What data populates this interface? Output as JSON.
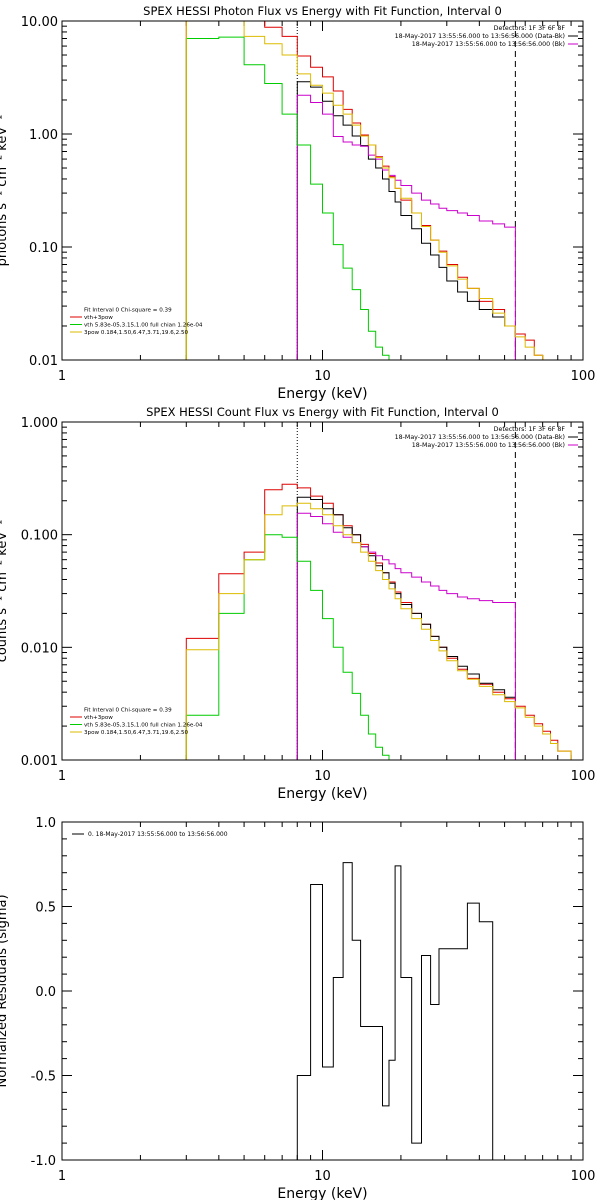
{
  "chart_data": [
    {
      "type": "line",
      "title": "SPEX HESSI Photon Flux vs Energy with Fit Function, Interval 0",
      "xlabel": "Energy (keV)",
      "ylabel": "photons s⁻¹ cm⁻² keV⁻¹",
      "x_scale": "log",
      "y_scale": "log",
      "xlim": [
        1,
        100
      ],
      "ylim": [
        0.01,
        10
      ],
      "x_ticks": [
        "1",
        "10",
        "100"
      ],
      "y_ticks": [
        "10.00",
        "1.00",
        "0.10",
        "0.01"
      ],
      "legend_top_right": [
        {
          "text": "Detectors: 1F 3F 6F 8F",
          "color": "#000000"
        },
        {
          "text": "18-May-2017 13:55:56.000 to 13:56:56.000 (Data-Bk)",
          "color": "#000000"
        },
        {
          "text": "18-May-2017 13:55:56.000 to 13:56:56.000 (Bk)",
          "color": "#cc00cc"
        }
      ],
      "legend_bottom_left": [
        {
          "text": "Fit Interval 0   Chi-square = 0.39",
          "color": "#000000"
        },
        {
          "text": "vth+3pow",
          "color": "#dd0000"
        },
        {
          "text": "vth 5.83e-05,3.15,1.00  full chian 1.26e-04",
          "color": "#00cc00"
        },
        {
          "text": "3pow 0.184,1.50,6.47,3.71,19.6,2.50",
          "color": "#ddbb00"
        }
      ],
      "vlines": [
        {
          "x": 8,
          "style": "dotted"
        },
        {
          "x": 55,
          "style": "dashed"
        }
      ],
      "series": [
        {
          "color": "#dd0000",
          "edges": [
            3,
            4,
            5,
            6,
            7,
            8,
            9,
            10,
            11,
            12,
            13,
            14,
            15,
            16,
            17,
            18,
            19,
            20,
            22,
            24,
            26,
            28,
            30,
            33,
            36,
            40,
            45,
            50,
            55,
            60,
            65,
            70
          ],
          "values": [
            10,
            10,
            10,
            8.8,
            7.3,
            4.9,
            3.9,
            3.2,
            2.4,
            1.65,
            1.25,
            0.98,
            0.8,
            0.63,
            0.52,
            0.42,
            0.33,
            0.26,
            0.2,
            0.155,
            0.115,
            0.092,
            0.07,
            0.054,
            0.043,
            0.033,
            0.028,
            0.02,
            0.017,
            0.015,
            0.011
          ]
        },
        {
          "color": "#000000",
          "edges": [
            8,
            9,
            10,
            11,
            12,
            13,
            14,
            15,
            16,
            17,
            18,
            19,
            20,
            22,
            24,
            26,
            28,
            30,
            33,
            36,
            40,
            45,
            50,
            55
          ],
          "values": [
            2.9,
            2.6,
            1.95,
            1.45,
            1.2,
            0.96,
            0.79,
            0.6,
            0.5,
            0.4,
            0.31,
            0.25,
            0.19,
            0.145,
            0.108,
            0.085,
            0.066,
            0.05,
            0.04,
            0.033,
            0.028,
            0.024,
            0.02
          ]
        },
        {
          "color": "#cc00cc",
          "edges": [
            8,
            9,
            10,
            11,
            12,
            13,
            14,
            15,
            16,
            17,
            18,
            19,
            20,
            22,
            24,
            26,
            28,
            30,
            33,
            36,
            40,
            45,
            50,
            55
          ],
          "values": [
            2.2,
            1.9,
            1.5,
            0.95,
            0.85,
            0.8,
            0.78,
            0.65,
            0.6,
            0.48,
            0.43,
            0.39,
            0.35,
            0.3,
            0.26,
            0.24,
            0.22,
            0.21,
            0.2,
            0.19,
            0.17,
            0.16,
            0.15
          ]
        },
        {
          "color": "#00cc00",
          "edges": [
            3,
            4,
            5,
            6,
            7,
            8,
            9,
            10,
            11,
            12,
            13,
            14,
            15,
            16,
            17,
            18
          ],
          "values": [
            7.0,
            7.2,
            4.1,
            2.8,
            1.5,
            0.8,
            0.36,
            0.2,
            0.105,
            0.065,
            0.042,
            0.028,
            0.018,
            0.013,
            0.011
          ]
        },
        {
          "color": "#ddbb00",
          "edges": [
            3,
            4,
            5,
            6,
            7,
            8,
            9,
            10,
            11,
            12,
            13,
            14,
            15,
            16,
            17,
            18,
            19,
            20,
            22,
            24,
            26,
            28,
            30,
            33,
            36,
            40,
            45,
            50,
            55,
            60,
            65,
            70,
            75
          ],
          "values": [
            10,
            10,
            7.3,
            6.3,
            5.0,
            3.4,
            2.7,
            2.3,
            1.8,
            1.5,
            1.2,
            0.96,
            0.8,
            0.62,
            0.5,
            0.41,
            0.33,
            0.27,
            0.2,
            0.152,
            0.115,
            0.09,
            0.068,
            0.052,
            0.043,
            0.035,
            0.026,
            0.02,
            0.016,
            0.013,
            0.011,
            0.0095
          ]
        }
      ]
    },
    {
      "type": "line",
      "title": "SPEX HESSI Count Flux vs Energy with Fit Function, Interval 0",
      "xlabel": "Energy (keV)",
      "ylabel": "counts s⁻¹ cm⁻² keV⁻¹",
      "x_scale": "log",
      "y_scale": "log",
      "xlim": [
        1,
        100
      ],
      "ylim": [
        0.001,
        1
      ],
      "x_ticks": [
        "1",
        "10",
        "100"
      ],
      "y_ticks": [
        "1.000",
        "0.100",
        "0.010",
        "0.001"
      ],
      "legend_top_right": [
        {
          "text": "Detectors: 1F 3F 6F 8F",
          "color": "#000000"
        },
        {
          "text": "18-May-2017 13:55:56.000 to 13:56:56.000 (Data-Bk)",
          "color": "#000000"
        },
        {
          "text": "18-May-2017 13:55:56.000 to 13:56:56.000 (Bk)",
          "color": "#cc00cc"
        }
      ],
      "legend_bottom_left": [
        {
          "text": "Fit Interval 0   Chi-square = 0.39",
          "color": "#000000"
        },
        {
          "text": "vth+3pow",
          "color": "#dd0000"
        },
        {
          "text": "vth 5.83e-05,3.15,1.00  full chian 1.26e-04",
          "color": "#00cc00"
        },
        {
          "text": "3pow 0.184,1.50,6.47,3.71,19.6,2.50",
          "color": "#ddbb00"
        }
      ],
      "vlines": [
        {
          "x": 8,
          "style": "dotted"
        },
        {
          "x": 55,
          "style": "dashed"
        }
      ],
      "series": [
        {
          "color": "#dd0000",
          "edges": [
            3,
            4,
            5,
            6,
            7,
            8,
            9,
            10,
            11,
            12,
            13,
            14,
            15,
            16,
            17,
            18,
            19,
            20,
            22,
            24,
            26,
            28,
            30,
            33,
            36,
            40,
            45,
            50,
            55,
            60,
            65,
            70,
            75,
            80,
            90,
            100
          ],
          "values": [
            0.012,
            0.045,
            0.07,
            0.25,
            0.28,
            0.26,
            0.22,
            0.19,
            0.15,
            0.12,
            0.1,
            0.082,
            0.068,
            0.056,
            0.046,
            0.038,
            0.031,
            0.025,
            0.02,
            0.016,
            0.0125,
            0.01,
            0.008,
            0.0064,
            0.0053,
            0.0047,
            0.004,
            0.0035,
            0.003,
            0.0025,
            0.0021,
            0.0018,
            0.0015,
            0.0012,
            0.001
          ]
        },
        {
          "color": "#000000",
          "edges": [
            8,
            9,
            10,
            11,
            12,
            13,
            14,
            15,
            16,
            17,
            18,
            19,
            20,
            22,
            24,
            26,
            28,
            30,
            33,
            36,
            40,
            45,
            50,
            55
          ],
          "values": [
            0.215,
            0.205,
            0.17,
            0.15,
            0.115,
            0.1,
            0.078,
            0.065,
            0.053,
            0.046,
            0.037,
            0.03,
            0.024,
            0.02,
            0.016,
            0.0125,
            0.01,
            0.0083,
            0.0068,
            0.0058,
            0.0048,
            0.0042,
            0.0036
          ]
        },
        {
          "color": "#cc00cc",
          "edges": [
            8,
            9,
            10,
            11,
            12,
            13,
            14,
            15,
            16,
            17,
            18,
            19,
            20,
            22,
            24,
            26,
            28,
            30,
            33,
            36,
            40,
            45,
            50,
            55
          ],
          "values": [
            0.155,
            0.145,
            0.125,
            0.105,
            0.095,
            0.085,
            0.078,
            0.07,
            0.065,
            0.06,
            0.055,
            0.05,
            0.046,
            0.042,
            0.038,
            0.035,
            0.032,
            0.03,
            0.028,
            0.027,
            0.026,
            0.025,
            0.025
          ]
        },
        {
          "color": "#00cc00",
          "edges": [
            3,
            4,
            5,
            6,
            7,
            8,
            9,
            10,
            11,
            12,
            13,
            14,
            15,
            16,
            17,
            18
          ],
          "values": [
            0.0025,
            0.02,
            0.06,
            0.1,
            0.095,
            0.058,
            0.032,
            0.018,
            0.01,
            0.006,
            0.0039,
            0.0025,
            0.0017,
            0.0013,
            0.0011
          ]
        },
        {
          "color": "#ddbb00",
          "edges": [
            3,
            4,
            5,
            6,
            7,
            8,
            9,
            10,
            11,
            12,
            13,
            14,
            15,
            16,
            17,
            18,
            19,
            20,
            22,
            24,
            26,
            28,
            30,
            33,
            36,
            40,
            45,
            50,
            55,
            60,
            65,
            70,
            75,
            80,
            90,
            100
          ],
          "values": [
            0.0095,
            0.03,
            0.06,
            0.15,
            0.18,
            0.19,
            0.17,
            0.15,
            0.12,
            0.1,
            0.085,
            0.07,
            0.058,
            0.048,
            0.04,
            0.033,
            0.027,
            0.022,
            0.018,
            0.0145,
            0.0115,
            0.0093,
            0.0076,
            0.0062,
            0.0052,
            0.0045,
            0.0038,
            0.0033,
            0.0029,
            0.0024,
            0.002,
            0.0017,
            0.0014,
            0.0012,
            0.001
          ]
        }
      ]
    },
    {
      "type": "line",
      "title": "",
      "xlabel": "Energy (keV)",
      "ylabel": "Normalized Residuals (sigma)",
      "x_scale": "log",
      "y_scale": "linear",
      "xlim": [
        1,
        100
      ],
      "ylim": [
        -1.0,
        1.0
      ],
      "x_ticks": [
        "1",
        "10",
        "100"
      ],
      "y_ticks": [
        "1.0",
        "0.5",
        "0.0",
        "-0.5",
        "-1.0"
      ],
      "legend_top_left": [
        {
          "text": "0. 18-May-2017 13:55:56.000 to 13:56:56.000",
          "color": "#000000"
        }
      ],
      "series": [
        {
          "color": "#000000",
          "edges": [
            8,
            9,
            10,
            11,
            12,
            13,
            14,
            15,
            16,
            17,
            18,
            19,
            20,
            22,
            24,
            26,
            28,
            30,
            33,
            36,
            40,
            45,
            50,
            55
          ],
          "values": [
            -0.5,
            0.63,
            -0.45,
            0.08,
            0.76,
            0.3,
            -0.21,
            -0.21,
            -0.21,
            -0.68,
            -0.41,
            0.74,
            0.08,
            -0.9,
            0.21,
            -0.08,
            0.25,
            0.25,
            0.25,
            0.52,
            0.41,
            -1.0,
            -1.0
          ]
        }
      ]
    }
  ]
}
